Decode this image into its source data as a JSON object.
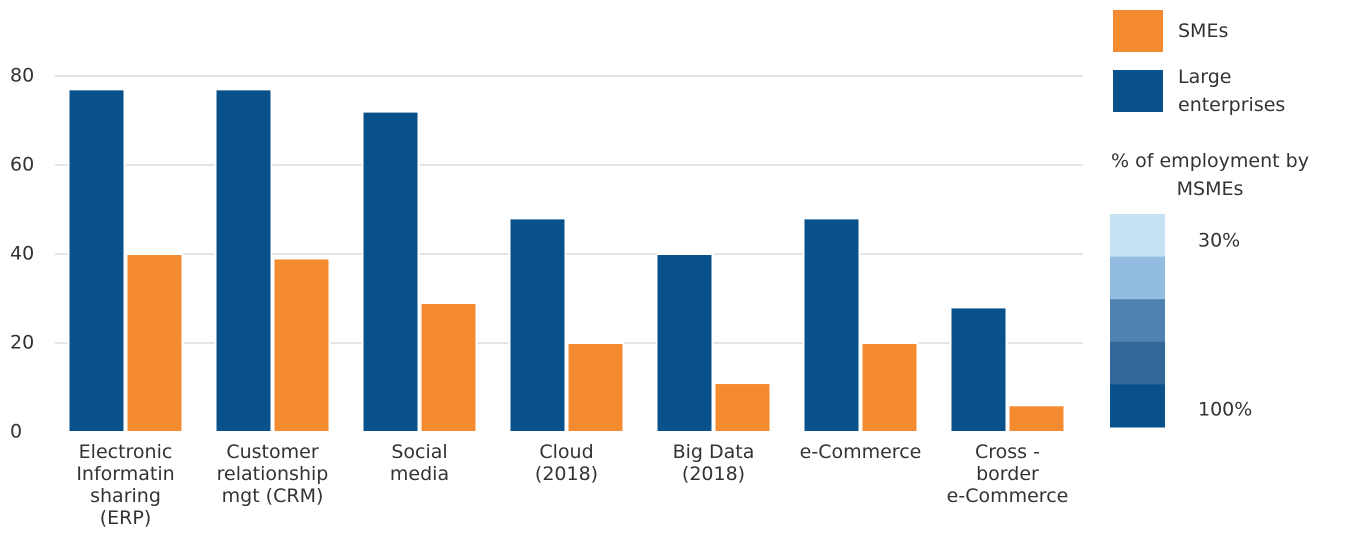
{
  "chart_data": {
    "type": "bar",
    "categories": [
      "Electronic\nInformatin\nsharing\n(ERP)",
      "Customer\nrelationship\nmgt (CRM)",
      "Social\nmedia",
      "Cloud\n(2018)",
      "Big Data\n(2018)",
      "e-Commerce",
      "Cross -\nborder\ne-Commerce"
    ],
    "series": [
      {
        "name": "Large\nenterprises",
        "color": "#08518a",
        "values": [
          77,
          77,
          72,
          48,
          40,
          48,
          28
        ]
      },
      {
        "name": "SMEs",
        "color": "#f58b31",
        "values": [
          40,
          39,
          29,
          20,
          11,
          20,
          6
        ]
      }
    ],
    "ylim": [
      0,
      80
    ],
    "yticks": [
      0,
      20,
      40,
      60,
      80
    ],
    "grid": true,
    "color_scale": {
      "title": "% of employment by\nMSMEs",
      "colors": [
        "#c5e2f2",
        "#92bde0",
        "#4e82b0",
        "#32679a",
        "#08518a"
      ],
      "labels": [
        "30%",
        "100%"
      ]
    }
  }
}
